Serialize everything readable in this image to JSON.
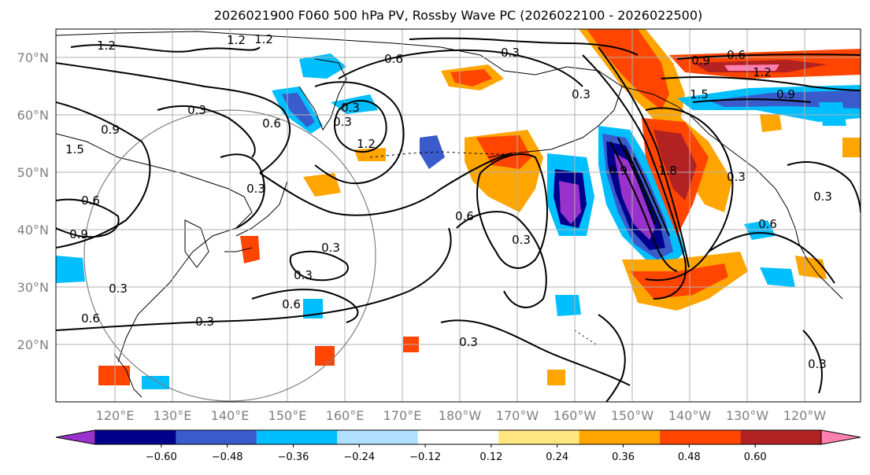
{
  "title": "2026021900 F060 500 hPa PV, Rossby Wave PC (2026022100 - 2026022500)",
  "lat_labels": [
    "70°N",
    "60°N",
    "50°N",
    "40°N",
    "30°N",
    "20°N"
  ],
  "lon_labels": [
    "120°E",
    "130°E",
    "140°E",
    "150°E",
    "160°E",
    "170°E",
    "180°W",
    "170°W",
    "160°W",
    "150°W",
    "140°W",
    "130°W",
    "120°W"
  ],
  "colorbar": {
    "tick_labels": [
      "−0.60",
      "−0.48",
      "−0.36",
      "−0.24",
      "−0.12",
      "0.12",
      "0.24",
      "0.36",
      "0.48",
      "0.60"
    ],
    "colors": [
      "#9932cc",
      "#00008b",
      "#3a5bcc",
      "#00bfff",
      "#b0e0ff",
      "#ffffff",
      "#ffe680",
      "#ffa500",
      "#ff4500",
      "#b22222",
      "#ff80b0"
    ]
  },
  "contour_labels": [
    "1.2",
    "1.2",
    "0.6",
    "0.3",
    "0.9",
    "0.6",
    "0.3",
    "0.6",
    "1.2",
    "0.3",
    "1.2",
    "0.9",
    "1.5",
    "0.9",
    "0.3",
    "0.6",
    "0.3",
    "0.3",
    "0.6",
    "0.6",
    "0.3",
    "0.3",
    "0.6",
    "0.3",
    "0.3",
    "1.8",
    "1.5",
    "0.9",
    "1.2",
    "0.9",
    "0.6",
    "0.3",
    "0.3",
    "0.3",
    "0.3",
    "0.3"
  ]
}
